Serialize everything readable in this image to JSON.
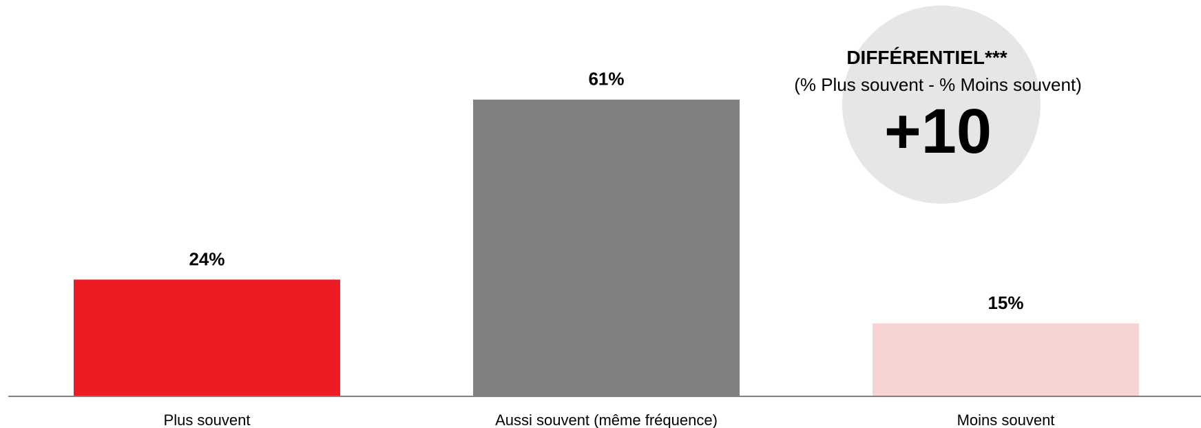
{
  "chart_data": {
    "type": "bar",
    "categories": [
      "Plus souvent",
      "Aussi souvent (même fréquence)",
      "Moins souvent"
    ],
    "values": [
      24,
      61,
      15
    ],
    "value_labels": [
      "24%",
      "61%",
      "15%"
    ],
    "unit": "%",
    "bar_colors": [
      "#ed1c24",
      "#808080",
      "#f8d3d3"
    ],
    "title": "",
    "xlabel": "",
    "ylabel": "",
    "ylim": [
      0,
      70
    ],
    "grid": false,
    "legend": "none"
  },
  "differential": {
    "title": "DIFFÉRENTIEL***",
    "subtitle": "(% Plus souvent - % Moins souvent)",
    "value": "+10",
    "circle_color": "#e6e6e6"
  },
  "colors": {
    "axis_line": "#7f7f7f",
    "background": "#ffffff"
  }
}
